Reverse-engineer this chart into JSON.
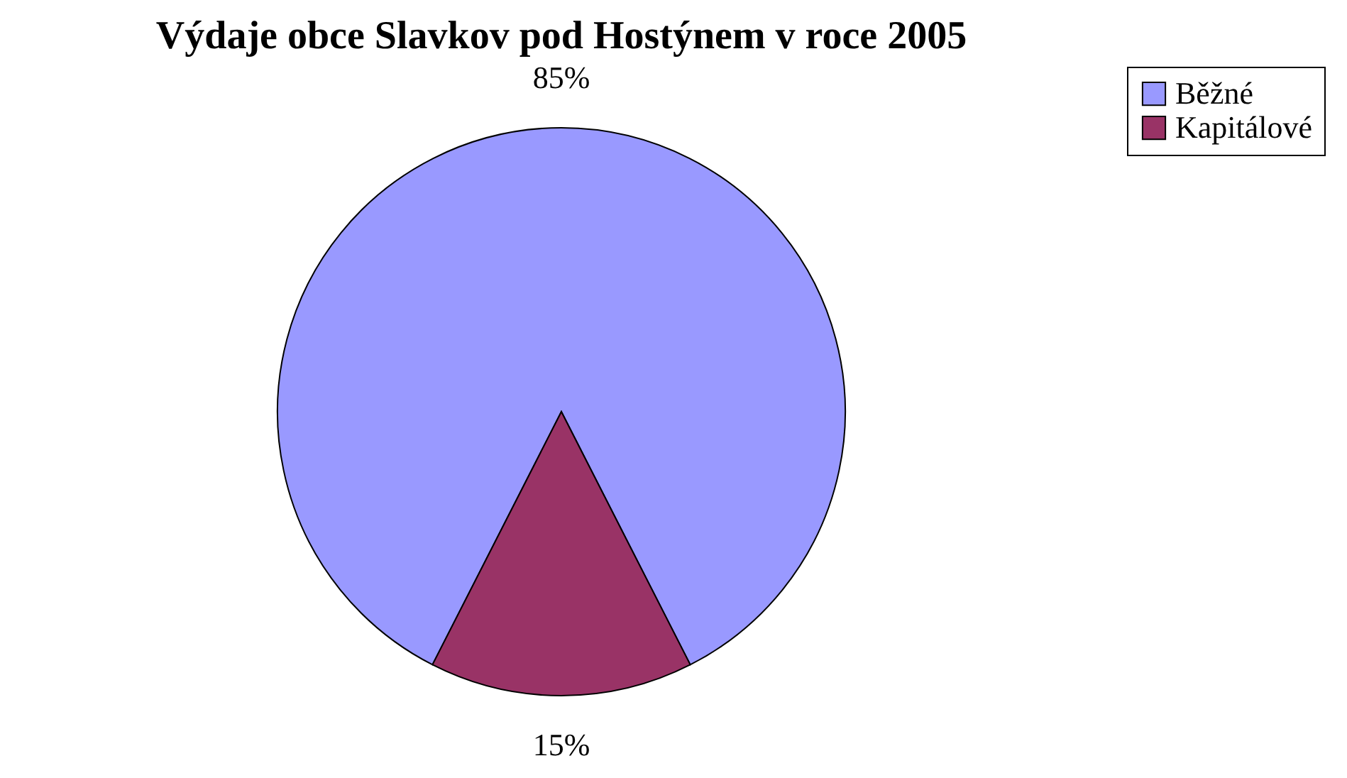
{
  "chart_data": {
    "type": "pie",
    "title": "Výdaje obce Slavkov pod Hostýnem v roce 2005",
    "categories": [
      "Běžné",
      "Kapitálové"
    ],
    "values": [
      85,
      15
    ],
    "colors": [
      "#9999ff",
      "#993366"
    ],
    "value_labels": [
      "85%",
      "15%"
    ],
    "legend": "right"
  }
}
